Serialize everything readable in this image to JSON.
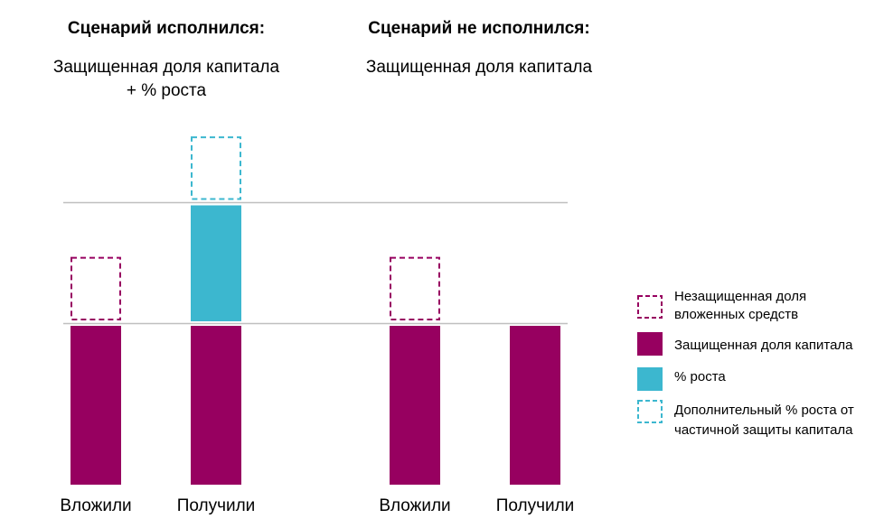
{
  "colors": {
    "protected": "#970060",
    "growth": "#3CB7CF",
    "unprotected_outline": "#970060",
    "extra_growth_outline": "#3CB7CF",
    "gridline": "#BFBFBF",
    "text": "#000000"
  },
  "chart_data": [
    {
      "type": "bar",
      "stacked": true,
      "title": "Сценарий исполнился:",
      "subtitle": [
        "Защищенная доля капитала",
        "+ % роста"
      ],
      "categories": [
        "Вложили",
        "Получили"
      ],
      "series": [
        {
          "name": "Защищенная доля капитала",
          "values": [
            100,
            100
          ],
          "style": "solid"
        },
        {
          "name": "Незащищенная доля вложенных средств",
          "values": [
            40,
            0
          ],
          "style": "dashed"
        },
        {
          "name": "% роста",
          "values": [
            0,
            73
          ],
          "style": "solid"
        },
        {
          "name": "Дополнительный % роста от частичной защиты капитала",
          "values": [
            0,
            40
          ],
          "style": "dashed"
        }
      ],
      "reference_lines": [
        100,
        176
      ],
      "ylim": [
        0,
        230
      ],
      "grid": false
    },
    {
      "type": "bar",
      "stacked": true,
      "title": "Сценарий не исполнился:",
      "subtitle": [
        "Защищенная доля капитала"
      ],
      "categories": [
        "Вложили",
        "Получили"
      ],
      "series": [
        {
          "name": "Защищенная доля капитала",
          "values": [
            100,
            100
          ],
          "style": "solid"
        },
        {
          "name": "Незащищенная доля вложенных средств",
          "values": [
            40,
            0
          ],
          "style": "dashed"
        }
      ],
      "reference_lines": [
        100
      ],
      "ylim": [
        0,
        230
      ],
      "grid": false
    }
  ],
  "legend": {
    "placement": "right",
    "items": [
      {
        "label": [
          "Незащищенная доля",
          "вложенных средств"
        ],
        "style": "dashed",
        "color_key": "unprotected_outline"
      },
      {
        "label": [
          "Защищенная доля капитала"
        ],
        "style": "solid",
        "color_key": "protected"
      },
      {
        "label": [
          "% роста"
        ],
        "style": "solid",
        "color_key": "growth"
      },
      {
        "label": [
          "Дополнительный % роста от",
          "частичной защиты капитала"
        ],
        "style": "dashed",
        "color_key": "extra_growth_outline"
      }
    ]
  }
}
